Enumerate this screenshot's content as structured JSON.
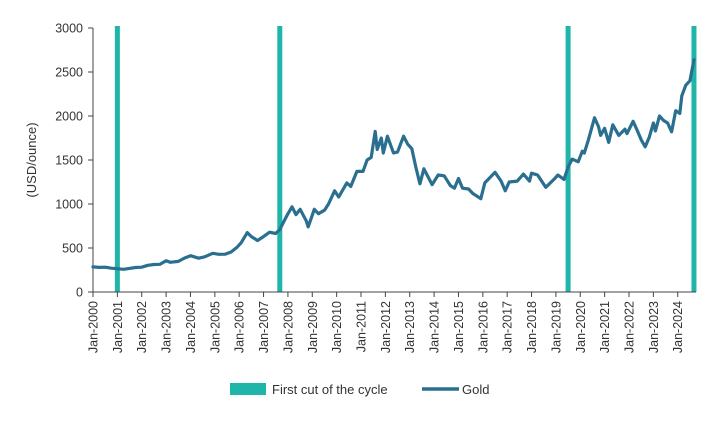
{
  "chart_data": {
    "type": "line",
    "title": "",
    "xlabel": "",
    "ylabel": "(USD/ounce)",
    "ylim": [
      0,
      3000
    ],
    "yticks": [
      "0",
      "500",
      "1000",
      "1500",
      "2000",
      "2500",
      "3000"
    ],
    "xlim": [
      "2000-01",
      "2024-10"
    ],
    "xticks": [
      "Jan-2000",
      "Jan-2001",
      "Jan-2002",
      "Jan-2003",
      "Jan-2004",
      "Jan-2005",
      "Jan-2006",
      "Jan-2007",
      "Jan-2008",
      "Jan-2009",
      "Jan-2010",
      "Jan-2011",
      "Jan-2012",
      "Jan-2013",
      "Jan-2014",
      "Jan-2015",
      "Jan-2016",
      "Jan-2017",
      "Jan-2018",
      "Jan-2019",
      "Jan-2020",
      "Jan-2021",
      "Jan-2022",
      "Jan-2023",
      "Jan-2024"
    ],
    "grid": false,
    "legend": "bottom",
    "colors": {
      "cuts": "#1fb5a8",
      "gold": "#2a6f8f"
    },
    "series": [
      {
        "name": "Gold",
        "points": [
          [
            "2000-01",
            285
          ],
          [
            "2000-04",
            280
          ],
          [
            "2000-07",
            282
          ],
          [
            "2000-10",
            270
          ],
          [
            "2001-01",
            265
          ],
          [
            "2001-04",
            258
          ],
          [
            "2001-07",
            268
          ],
          [
            "2001-10",
            278
          ],
          [
            "2002-01",
            282
          ],
          [
            "2002-04",
            303
          ],
          [
            "2002-07",
            313
          ],
          [
            "2002-10",
            315
          ],
          [
            "2003-01",
            356
          ],
          [
            "2003-03",
            338
          ],
          [
            "2003-07",
            348
          ],
          [
            "2003-10",
            385
          ],
          [
            "2004-01",
            412
          ],
          [
            "2004-05",
            384
          ],
          [
            "2004-08",
            400
          ],
          [
            "2004-12",
            440
          ],
          [
            "2005-03",
            428
          ],
          [
            "2005-06",
            430
          ],
          [
            "2005-09",
            455
          ],
          [
            "2005-12",
            510
          ],
          [
            "2006-02",
            560
          ],
          [
            "2006-05",
            675
          ],
          [
            "2006-07",
            630
          ],
          [
            "2006-10",
            585
          ],
          [
            "2007-01",
            630
          ],
          [
            "2007-04",
            680
          ],
          [
            "2007-07",
            665
          ],
          [
            "2007-09",
            710
          ],
          [
            "2007-11",
            800
          ],
          [
            "2008-01",
            889
          ],
          [
            "2008-03",
            968
          ],
          [
            "2008-05",
            880
          ],
          [
            "2008-07",
            940
          ],
          [
            "2008-10",
            810
          ],
          [
            "2008-11",
            740
          ],
          [
            "2009-02",
            940
          ],
          [
            "2009-04",
            890
          ],
          [
            "2009-07",
            930
          ],
          [
            "2009-09",
            1000
          ],
          [
            "2009-12",
            1150
          ],
          [
            "2010-02",
            1080
          ],
          [
            "2010-06",
            1240
          ],
          [
            "2010-08",
            1200
          ],
          [
            "2010-11",
            1370
          ],
          [
            "2011-02",
            1370
          ],
          [
            "2011-04",
            1500
          ],
          [
            "2011-06",
            1530
          ],
          [
            "2011-08",
            1825
          ],
          [
            "2011-09",
            1620
          ],
          [
            "2011-11",
            1750
          ],
          [
            "2011-12",
            1580
          ],
          [
            "2012-02",
            1770
          ],
          [
            "2012-05",
            1580
          ],
          [
            "2012-07",
            1590
          ],
          [
            "2012-10",
            1770
          ],
          [
            "2012-12",
            1680
          ],
          [
            "2013-02",
            1630
          ],
          [
            "2013-04",
            1420
          ],
          [
            "2013-06",
            1230
          ],
          [
            "2013-08",
            1400
          ],
          [
            "2013-12",
            1220
          ],
          [
            "2014-03",
            1330
          ],
          [
            "2014-06",
            1320
          ],
          [
            "2014-09",
            1210
          ],
          [
            "2014-11",
            1180
          ],
          [
            "2015-01",
            1290
          ],
          [
            "2015-03",
            1180
          ],
          [
            "2015-06",
            1170
          ],
          [
            "2015-08",
            1120
          ],
          [
            "2015-12",
            1060
          ],
          [
            "2016-02",
            1240
          ],
          [
            "2016-07",
            1360
          ],
          [
            "2016-10",
            1260
          ],
          [
            "2016-12",
            1150
          ],
          [
            "2017-02",
            1250
          ],
          [
            "2017-06",
            1260
          ],
          [
            "2017-09",
            1340
          ],
          [
            "2017-12",
            1260
          ],
          [
            "2018-01",
            1350
          ],
          [
            "2018-04",
            1330
          ],
          [
            "2018-08",
            1190
          ],
          [
            "2018-12",
            1280
          ],
          [
            "2019-02",
            1330
          ],
          [
            "2019-05",
            1280
          ],
          [
            "2019-07",
            1420
          ],
          [
            "2019-09",
            1510
          ],
          [
            "2019-12",
            1480
          ],
          [
            "2020-02",
            1600
          ],
          [
            "2020-03",
            1580
          ],
          [
            "2020-05",
            1730
          ],
          [
            "2020-08",
            1980
          ],
          [
            "2020-10",
            1880
          ],
          [
            "2020-11",
            1780
          ],
          [
            "2021-01",
            1860
          ],
          [
            "2021-03",
            1700
          ],
          [
            "2021-05",
            1900
          ],
          [
            "2021-08",
            1780
          ],
          [
            "2021-11",
            1850
          ],
          [
            "2021-12",
            1800
          ],
          [
            "2022-03",
            1940
          ],
          [
            "2022-05",
            1840
          ],
          [
            "2022-07",
            1730
          ],
          [
            "2022-09",
            1650
          ],
          [
            "2022-11",
            1760
          ],
          [
            "2023-01",
            1920
          ],
          [
            "2023-02",
            1830
          ],
          [
            "2023-04",
            2000
          ],
          [
            "2023-06",
            1950
          ],
          [
            "2023-08",
            1920
          ],
          [
            "2023-10",
            1820
          ],
          [
            "2023-12",
            2060
          ],
          [
            "2024-02",
            2030
          ],
          [
            "2024-03",
            2230
          ],
          [
            "2024-05",
            2350
          ],
          [
            "2024-07",
            2400
          ],
          [
            "2024-09",
            2640
          ]
        ]
      }
    ],
    "markers": {
      "name": "First cut of the cycle",
      "dates": [
        "2001-01",
        "2007-09",
        "2019-07",
        "2024-09"
      ]
    }
  }
}
